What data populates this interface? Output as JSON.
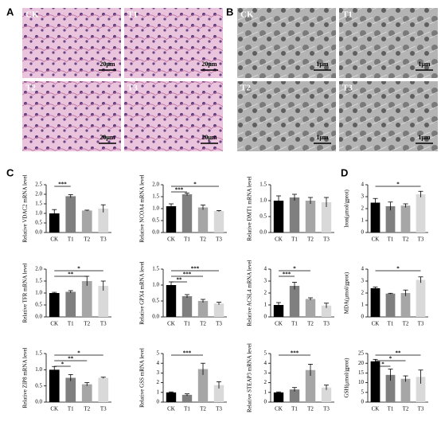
{
  "panel_labels": [
    "A",
    "B",
    "C",
    "D"
  ],
  "he_images": [
    {
      "label": "CK",
      "scale": "20μm"
    },
    {
      "label": "T1",
      "scale": "20μm"
    },
    {
      "label": "T2",
      "scale": "20μm"
    },
    {
      "label": "T3",
      "scale": "20μm"
    }
  ],
  "tem_images": [
    {
      "label": "CK",
      "scale": "1μm"
    },
    {
      "label": "T1",
      "scale": "1μm"
    },
    {
      "label": "T2",
      "scale": "1μm"
    },
    {
      "label": "T3",
      "scale": "1μm"
    }
  ],
  "bar_colors": [
    "#000000",
    "#7f7f7f",
    "#a6a6a6",
    "#d9d9d9"
  ],
  "chart_data": [
    {
      "type": "bar",
      "y_label": "Relative VDAC2 mRNA level",
      "categories": [
        "CK",
        "T1",
        "T2",
        "T3"
      ],
      "values": [
        1.0,
        1.9,
        1.15,
        1.25
      ],
      "errors": [
        0.2,
        0.08,
        0.02,
        0.2
      ],
      "ylim": [
        0,
        2.5
      ],
      "yticks": [
        {
          "value": 0,
          "label": "0.0"
        },
        {
          "value": 0.5,
          "label": "0.5"
        },
        {
          "value": 1,
          "label": "1.0"
        },
        {
          "value": 1.5,
          "label": "1.5"
        },
        {
          "value": 2,
          "label": "2.0"
        },
        {
          "value": 2.5,
          "label": "2.5"
        }
      ],
      "significance": [
        {
          "pair": [
            "CK",
            "T1"
          ],
          "text": "***"
        }
      ]
    },
    {
      "type": "bar",
      "y_label": "Relative NCOA4 mRNA level",
      "categories": [
        "CK",
        "T1",
        "T2",
        "T3"
      ],
      "values": [
        1.1,
        1.6,
        1.05,
        0.9
      ],
      "errors": [
        0.1,
        0.05,
        0.1,
        0.02
      ],
      "ylim": [
        0,
        2
      ],
      "yticks": [
        {
          "value": 0,
          "label": "0.0"
        },
        {
          "value": 0.5,
          "label": "0.5"
        },
        {
          "value": 1,
          "label": "1.0"
        },
        {
          "value": 1.5,
          "label": "1.5"
        },
        {
          "value": 2,
          "label": "2.0"
        }
      ],
      "significance": [
        {
          "pair": [
            "CK",
            "T1"
          ],
          "text": "***"
        },
        {
          "pair": [
            "CK",
            "T3"
          ],
          "text": "*"
        }
      ]
    },
    {
      "type": "bar",
      "y_label": "Relative DMT1 mRNA level",
      "categories": [
        "CK",
        "T1",
        "T2",
        "T3"
      ],
      "values": [
        1.0,
        1.1,
        1.0,
        0.95
      ],
      "errors": [
        0.15,
        0.1,
        0.1,
        0.15
      ],
      "ylim": [
        0,
        1.5
      ],
      "yticks": [
        {
          "value": 0,
          "label": "0.0"
        },
        {
          "value": 0.5,
          "label": "0.5"
        },
        {
          "value": 1,
          "label": "1.0"
        },
        {
          "value": 1.5,
          "label": "1.5"
        }
      ],
      "significance": []
    },
    {
      "type": "bar",
      "y_label": "Relative TFR mRNA level",
      "categories": [
        "CK",
        "T1",
        "T2",
        "T3"
      ],
      "values": [
        1.0,
        1.05,
        1.5,
        1.3
      ],
      "errors": [
        0.03,
        0.05,
        0.2,
        0.2
      ],
      "ylim": [
        0,
        2
      ],
      "yticks": [
        {
          "value": 0,
          "label": "0.0"
        },
        {
          "value": 0.5,
          "label": "0.5"
        },
        {
          "value": 1,
          "label": "1.0"
        },
        {
          "value": 1.5,
          "label": "1.5"
        },
        {
          "value": 2,
          "label": "2.0"
        }
      ],
      "significance": [
        {
          "pair": [
            "CK",
            "T2"
          ],
          "text": "**"
        },
        {
          "pair": [
            "CK",
            "T3"
          ],
          "text": "*"
        }
      ]
    },
    {
      "type": "bar",
      "y_label": "Relative GPX4 mRNA level",
      "categories": [
        "CK",
        "T1",
        "T2",
        "T3"
      ],
      "values": [
        1.0,
        0.65,
        0.5,
        0.42
      ],
      "errors": [
        0.1,
        0.05,
        0.05,
        0.04
      ],
      "ylim": [
        0,
        1.5
      ],
      "yticks": [
        {
          "value": 0,
          "label": "0.0"
        },
        {
          "value": 0.5,
          "label": "0.5"
        },
        {
          "value": 1,
          "label": "1.0"
        },
        {
          "value": 1.5,
          "label": "1.5"
        }
      ],
      "significance": [
        {
          "pair": [
            "CK",
            "T1"
          ],
          "text": "**"
        },
        {
          "pair": [
            "CK",
            "T2"
          ],
          "text": "***"
        },
        {
          "pair": [
            "CK",
            "T3"
          ],
          "text": "***"
        }
      ]
    },
    {
      "type": "bar",
      "y_label": "Relative ACSL4 mRNA level",
      "categories": [
        "CK",
        "T1",
        "T2",
        "T3"
      ],
      "values": [
        1.0,
        2.6,
        1.5,
        0.95
      ],
      "errors": [
        0.2,
        0.3,
        0.1,
        0.2
      ],
      "ylim": [
        0,
        4
      ],
      "yticks": [
        0,
        1,
        2,
        3,
        4
      ],
      "significance": [
        {
          "pair": [
            "CK",
            "T1"
          ],
          "text": "***"
        },
        {
          "pair": [
            "CK",
            "T2"
          ],
          "text": "*"
        }
      ]
    },
    {
      "type": "bar",
      "y_label": "Relative ZIP8 mRNA level",
      "categories": [
        "CK",
        "T1",
        "T2",
        "T3"
      ],
      "values": [
        1.0,
        0.75,
        0.55,
        0.75
      ],
      "errors": [
        0.1,
        0.1,
        0.05,
        0.02
      ],
      "ylim": [
        0,
        1.5
      ],
      "yticks": [
        {
          "value": 0,
          "label": "0.0"
        },
        {
          "value": 0.5,
          "label": "0.5"
        },
        {
          "value": 1,
          "label": "1.0"
        },
        {
          "value": 1.5,
          "label": "1.5"
        }
      ],
      "significance": [
        {
          "pair": [
            "CK",
            "T1"
          ],
          "text": "*"
        },
        {
          "pair": [
            "CK",
            "T2"
          ],
          "text": "**"
        },
        {
          "pair": [
            "CK",
            "T3"
          ],
          "text": "*"
        }
      ]
    },
    {
      "type": "bar",
      "y_label": "Relative GSS mRNA level",
      "categories": [
        "CK",
        "T1",
        "T2",
        "T3"
      ],
      "values": [
        1.0,
        0.75,
        3.4,
        1.75
      ],
      "errors": [
        0.05,
        0.1,
        0.6,
        0.35
      ],
      "ylim": [
        0,
        5
      ],
      "yticks": [
        0,
        1,
        2,
        3,
        4,
        5
      ],
      "significance": [
        {
          "pair": [
            "CK",
            "T2"
          ],
          "text": "***"
        }
      ]
    },
    {
      "type": "bar",
      "y_label": "Relative STEAP3 mRNA level",
      "categories": [
        "CK",
        "T1",
        "T2",
        "T3"
      ],
      "values": [
        1.0,
        1.3,
        3.3,
        1.5
      ],
      "errors": [
        0.05,
        0.2,
        0.6,
        0.25
      ],
      "ylim": [
        0,
        5
      ],
      "yticks": [
        0,
        1,
        2,
        3,
        4,
        5
      ],
      "significance": [
        {
          "pair": [
            "CK",
            "T2"
          ],
          "text": "***"
        }
      ]
    },
    {
      "type": "bar",
      "y_label": "Iron(μmol/gprot)",
      "categories": [
        "CK",
        "T1",
        "T2",
        "T3"
      ],
      "values": [
        2.5,
        2.2,
        2.25,
        3.2
      ],
      "errors": [
        0.35,
        0.35,
        0.15,
        0.25
      ],
      "ylim": [
        0,
        4
      ],
      "yticks": [
        0,
        1,
        2,
        3,
        4
      ],
      "significance": [
        {
          "pair": [
            "CK",
            "T3"
          ],
          "text": "*"
        }
      ]
    },
    {
      "type": "bar",
      "y_label": "MDA(μmol/gprot)",
      "categories": [
        "CK",
        "T1",
        "T2",
        "T3"
      ],
      "values": [
        2.4,
        1.95,
        2.0,
        3.1
      ],
      "errors": [
        0.1,
        0.03,
        0.25,
        0.25
      ],
      "ylim": [
        0,
        4
      ],
      "yticks": [
        0,
        1,
        2,
        3,
        4
      ],
      "significance": [
        {
          "pair": [
            "CK",
            "T3"
          ],
          "text": "*"
        }
      ]
    },
    {
      "type": "bar",
      "y_label": "GSH(μmol/gprot)",
      "categories": [
        "CK",
        "T1",
        "T2",
        "T3"
      ],
      "values": [
        21,
        14,
        12,
        13
      ],
      "errors": [
        1,
        3,
        1.5,
        3.5
      ],
      "ylim": [
        0,
        25
      ],
      "yticks": [
        0,
        5,
        10,
        15,
        20,
        25
      ],
      "significance": [
        {
          "pair": [
            "CK",
            "T1"
          ],
          "text": "*"
        },
        {
          "pair": [
            "CK",
            "T2"
          ],
          "text": "*"
        },
        {
          "pair": [
            "CK",
            "T3"
          ],
          "text": "**"
        }
      ]
    }
  ]
}
